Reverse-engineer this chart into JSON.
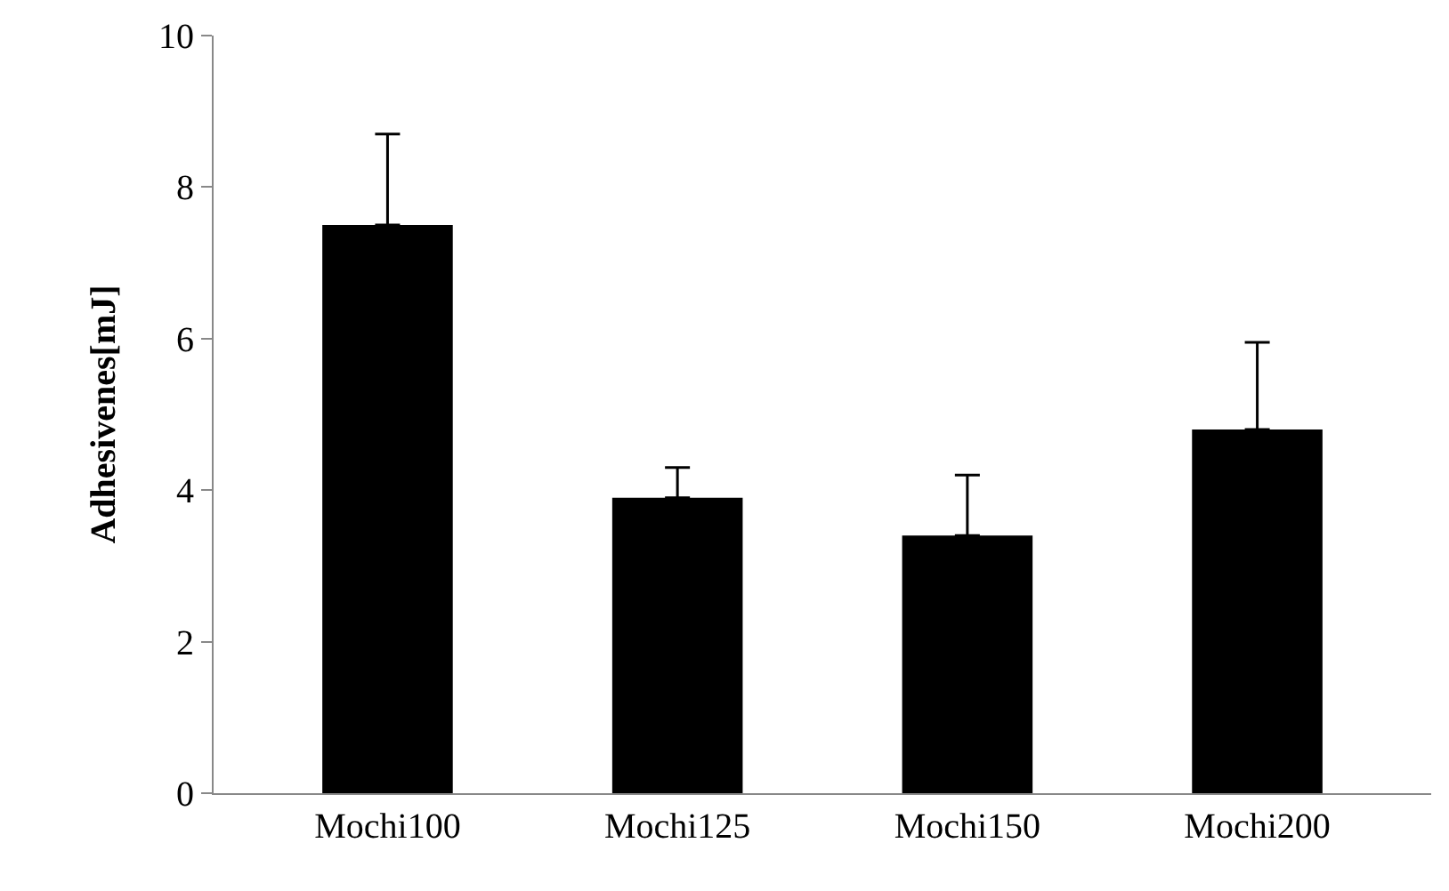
{
  "chart_data": {
    "type": "bar",
    "ylabel": "Adhesivenes[mJ]",
    "categories": [
      "Mochi100",
      "Mochi125",
      "Mochi150",
      "Mochi200"
    ],
    "values": [
      7.5,
      3.9,
      3.4,
      4.8
    ],
    "errors": [
      [
        7.5,
        8.7
      ],
      [
        3.9,
        4.3
      ],
      [
        3.4,
        4.2
      ],
      [
        4.8,
        5.95
      ]
    ],
    "color": "#000000",
    "ylim": [
      0,
      10
    ],
    "yticks": [
      0,
      2,
      4,
      6,
      8,
      10
    ],
    "grid": false
  }
}
